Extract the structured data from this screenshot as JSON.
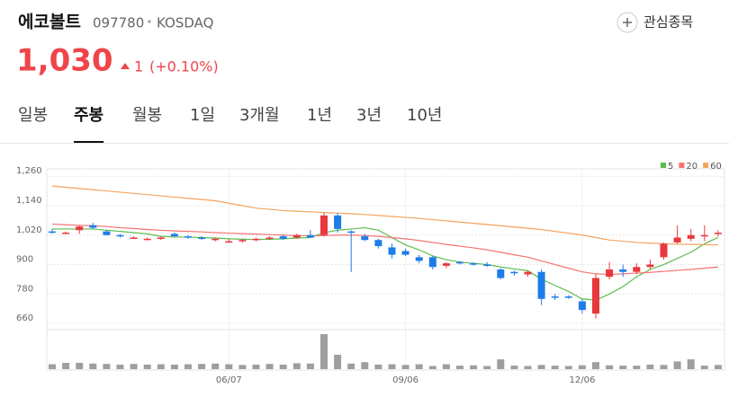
{
  "header": {
    "name": "에코볼트",
    "code": "097780",
    "market": "KOSDAQ",
    "watch_button": "관심종목",
    "price": "1,030",
    "change": "1",
    "change_pct": "(+0.10%)"
  },
  "tabs": [
    "일봉",
    "주봉",
    "월봉",
    "1일",
    "3개월",
    "1년",
    "3년",
    "10년"
  ],
  "selected_tab": 1,
  "chart_data": {
    "type": "candlestick",
    "x": [
      null,
      null,
      null,
      null,
      null,
      null,
      null,
      null,
      null,
      null,
      null,
      null,
      null,
      "06/07",
      null,
      null,
      null,
      null,
      null,
      null,
      null,
      null,
      null,
      null,
      null,
      null,
      "09/06",
      null,
      null,
      null,
      null,
      null,
      null,
      null,
      null,
      null,
      null,
      null,
      null,
      "12/06",
      null,
      null,
      null,
      null,
      null,
      null,
      null,
      null,
      null,
      null
    ],
    "open": [
      1035,
      1030,
      1040,
      1060,
      1035,
      1020,
      1010,
      1005,
      1005,
      1025,
      1015,
      1010,
      1000,
      995,
      995,
      1000,
      1005,
      1015,
      1010,
      1020,
      1020,
      1100,
      1035,
      1015,
      1000,
      970,
      955,
      930,
      930,
      895,
      910,
      905,
      900,
      880,
      870,
      860,
      870,
      770,
      770,
      750,
      700,
      850,
      880,
      870,
      890,
      930,
      990,
      1005,
      1020,
      1025
    ],
    "high": [
      1045,
      1035,
      1060,
      1070,
      1040,
      1025,
      1015,
      1010,
      1015,
      1030,
      1020,
      1015,
      1010,
      1005,
      1005,
      1010,
      1015,
      1020,
      1025,
      1040,
      1110,
      1110,
      1040,
      1025,
      1005,
      985,
      965,
      940,
      935,
      910,
      915,
      910,
      910,
      885,
      875,
      875,
      880,
      780,
      775,
      760,
      860,
      910,
      900,
      905,
      920,
      990,
      1060,
      1045,
      1060,
      1040
    ],
    "low": [
      1025,
      1025,
      1025,
      1045,
      1020,
      1010,
      1005,
      1000,
      1000,
      1015,
      1005,
      1000,
      995,
      990,
      990,
      995,
      1000,
      1000,
      1005,
      1010,
      1015,
      1030,
      870,
      995,
      965,
      925,
      935,
      905,
      880,
      885,
      900,
      895,
      890,
      840,
      855,
      850,
      735,
      755,
      760,
      700,
      680,
      840,
      850,
      860,
      880,
      920,
      985,
      995,
      995,
      1015
    ],
    "close": [
      1030,
      1030,
      1055,
      1050,
      1020,
      1015,
      1010,
      1005,
      1010,
      1015,
      1010,
      1005,
      1005,
      995,
      1000,
      1005,
      1010,
      1005,
      1020,
      1010,
      1100,
      1045,
      1030,
      1000,
      975,
      940,
      940,
      915,
      890,
      905,
      905,
      900,
      895,
      845,
      865,
      870,
      760,
      765,
      765,
      715,
      845,
      880,
      870,
      890,
      900,
      985,
      1010,
      1020,
      1020,
      1030
    ],
    "volume": [
      14,
      18,
      18,
      16,
      15,
      13,
      15,
      13,
      14,
      13,
      14,
      15,
      16,
      14,
      12,
      13,
      15,
      13,
      17,
      16,
      100,
      41,
      16,
      20,
      13,
      14,
      12,
      14,
      9,
      14,
      10,
      11,
      9,
      28,
      10,
      9,
      12,
      10,
      9,
      11,
      20,
      11,
      10,
      10,
      13,
      12,
      22,
      28,
      10,
      12
    ],
    "up_color": "#e8383d",
    "down_color": "#1e7ce8",
    "volume_color": "#9e9e9e",
    "series": [
      {
        "name": "5",
        "color": "#5cbd4f",
        "values": [
          1045,
          1045,
          1045,
          1045,
          1040,
          1035,
          1030,
          1025,
          1015,
          1012,
          1012,
          1010,
          1008,
          1005,
          1003,
          1002,
          1003,
          1005,
          1008,
          1010,
          1030,
          1040,
          1045,
          1050,
          1040,
          1010,
          980,
          960,
          935,
          920,
          910,
          905,
          900,
          890,
          882,
          875,
          840,
          815,
          790,
          760,
          755,
          780,
          810,
          850,
          880,
          900,
          925,
          950,
          985,
          1010
        ]
      },
      {
        "name": "20",
        "color": "#f37373",
        "values": [
          1065,
          1062,
          1060,
          1058,
          1055,
          1050,
          1047,
          1043,
          1040,
          1037,
          1035,
          1033,
          1030,
          1028,
          1026,
          1024,
          1022,
          1020,
          1018,
          1017,
          1018,
          1020,
          1020,
          1018,
          1015,
          1010,
          1005,
          998,
          990,
          982,
          975,
          968,
          960,
          950,
          940,
          930,
          915,
          900,
          885,
          870,
          862,
          860,
          862,
          865,
          868,
          872,
          876,
          880,
          885,
          890
        ]
      },
      {
        "name": "60",
        "color": "#f4a35f",
        "values": [
          1220,
          1215,
          1210,
          1205,
          1200,
          1195,
          1190,
          1185,
          1180,
          1175,
          1170,
          1165,
          1160,
          1150,
          1140,
          1130,
          1125,
          1120,
          1117,
          1115,
          1112,
          1110,
          1107,
          1104,
          1100,
          1096,
          1092,
          1088,
          1083,
          1078,
          1073,
          1068,
          1063,
          1058,
          1053,
          1048,
          1043,
          1035,
          1028,
          1020,
          1010,
          1000,
          995,
          990,
          987,
          985,
          983,
          982,
          981,
          980
        ]
      }
    ],
    "ylim": [
      642,
      1290
    ],
    "yticks": [
      660,
      780,
      900,
      {
        "value": 1020,
        "label": "1,020"
      },
      {
        "value": 1140,
        "label": "1,140"
      },
      {
        "value": 1260,
        "label": "1,260"
      }
    ],
    "grid": true
  }
}
